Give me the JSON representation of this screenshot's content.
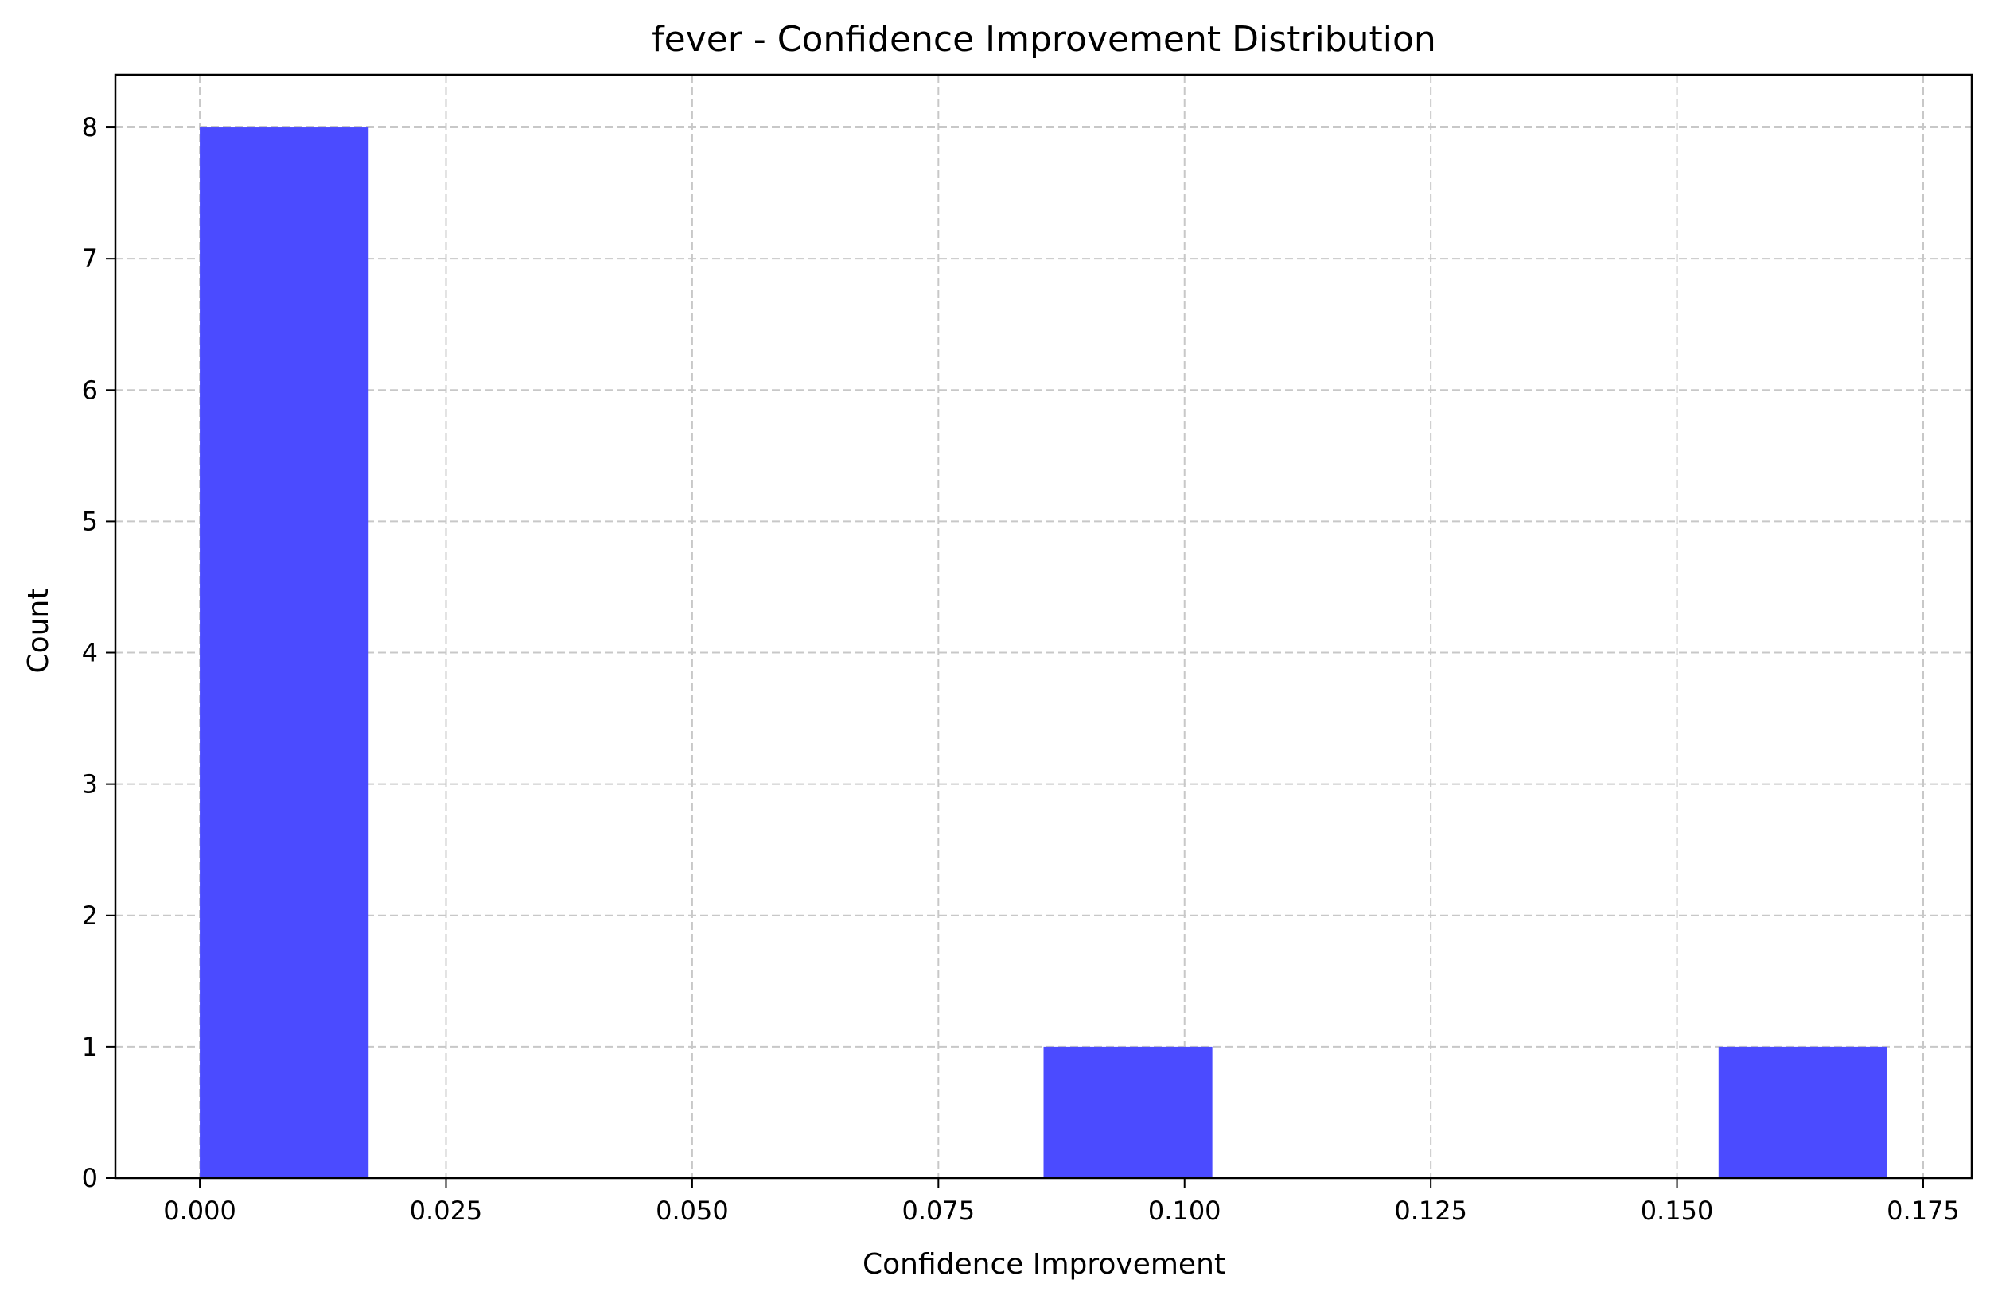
{
  "chart_data": {
    "type": "bar",
    "title": "fever - Confidence Improvement Distribution",
    "xlabel": "Confidence Improvement",
    "ylabel": "Count",
    "bins": [
      {
        "x0": 0.0,
        "x1": 0.01714,
        "count": 8
      },
      {
        "x0": 0.08568,
        "x1": 0.10282,
        "count": 1
      },
      {
        "x0": 0.15422,
        "x1": 0.17136,
        "count": 1
      }
    ],
    "xlim": [
      -0.00857,
      0.17993
    ],
    "ylim": [
      0,
      8.4
    ],
    "xticks": [
      0.0,
      0.025,
      0.05,
      0.075,
      0.1,
      0.125,
      0.15,
      0.175
    ],
    "xtick_labels": [
      "0.000",
      "0.025",
      "0.050",
      "0.075",
      "0.100",
      "0.125",
      "0.150",
      "0.175"
    ],
    "yticks": [
      0,
      1,
      2,
      3,
      4,
      5,
      6,
      7,
      8
    ],
    "ytick_labels": [
      "0",
      "1",
      "2",
      "3",
      "4",
      "5",
      "6",
      "7",
      "8"
    ],
    "grid": true,
    "bar_color": "#4b4bff",
    "grid_color": "#c8c8c8"
  }
}
